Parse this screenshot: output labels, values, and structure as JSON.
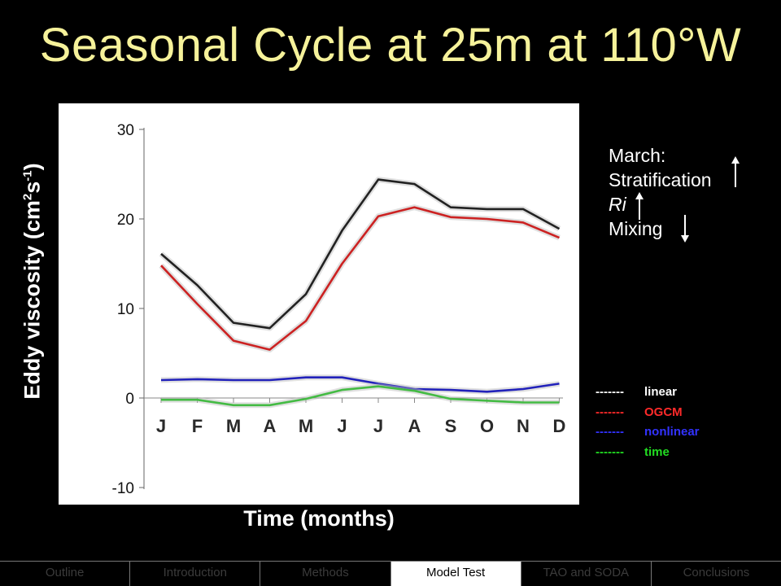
{
  "title": "Seasonal Cycle at 25m at 110°W",
  "chart_data": {
    "type": "line",
    "x": [
      "J",
      "F",
      "M",
      "A",
      "M",
      "J",
      "J",
      "A",
      "S",
      "O",
      "N",
      "D"
    ],
    "xlabel": "Time (months)",
    "ylabel_parts": [
      "Eddy viscosity (cm",
      "2",
      "s",
      "-1",
      ")"
    ],
    "ylim": [
      -10,
      30
    ],
    "yticks": [
      "30",
      "20",
      "10",
      "0",
      "-10"
    ],
    "grid": false,
    "series": [
      {
        "name": "linear",
        "color": "#222222",
        "values": [
          16.1,
          12.6,
          8.4,
          7.8,
          11.6,
          18.7,
          24.4,
          23.9,
          21.3,
          21.1,
          21.1,
          18.9
        ]
      },
      {
        "name": "OGCM",
        "color": "#cc2222",
        "values": [
          14.8,
          10.5,
          6.4,
          5.4,
          8.6,
          15.0,
          20.3,
          21.3,
          20.2,
          20.0,
          19.6,
          17.9
        ]
      },
      {
        "name": "nonlinear",
        "color": "#2222bb",
        "values": [
          2.0,
          2.1,
          2.0,
          2.0,
          2.3,
          2.3,
          1.6,
          1.0,
          0.9,
          0.7,
          1.0,
          1.6
        ]
      },
      {
        "name": "time",
        "color": "#44bb44",
        "values": [
          -0.2,
          -0.2,
          -0.8,
          -0.8,
          -0.1,
          0.9,
          1.3,
          0.8,
          -0.1,
          -0.3,
          -0.5,
          -0.5
        ]
      }
    ]
  },
  "annotation": {
    "heading": "March:",
    "line1": "Stratification",
    "line2": "Ri",
    "line3": "Mixing"
  },
  "legend": [
    {
      "dash": "-------",
      "name": "linear",
      "color": "#ffffff"
    },
    {
      "dash": "-------",
      "name": "OGCM",
      "color": "#ff2a2a"
    },
    {
      "dash": "-------",
      "name": "nonlinear",
      "color": "#3232ff"
    },
    {
      "dash": "-------",
      "name": "time",
      "color": "#22dd22"
    }
  ],
  "nav": [
    {
      "label": "Outline",
      "active": false
    },
    {
      "label": "Introduction",
      "active": false
    },
    {
      "label": "Methods",
      "active": false
    },
    {
      "label": "Model Test",
      "active": true
    },
    {
      "label": "TAO and SODA",
      "active": false
    },
    {
      "label": "Conclusions",
      "active": false
    }
  ]
}
